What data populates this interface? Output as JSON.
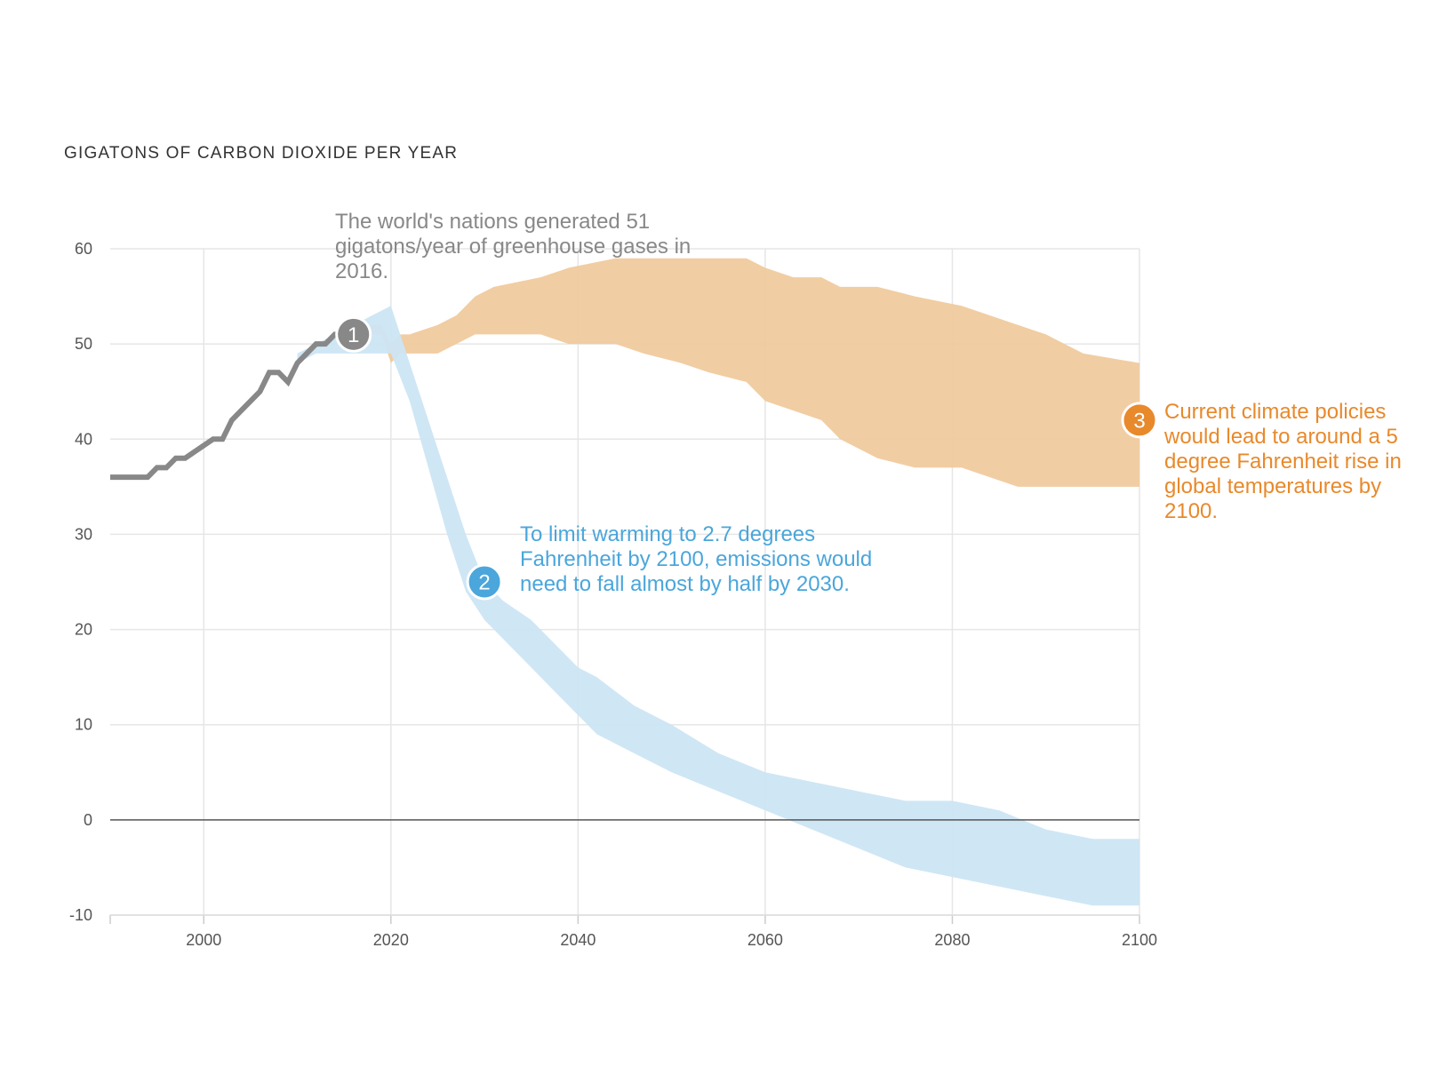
{
  "chart_data": {
    "type": "area",
    "title": "GIGATONS OF CARBON DIOXIDE PER YEAR",
    "xlabel": "",
    "ylabel": "",
    "xlim": [
      1990,
      2100
    ],
    "ylim": [
      -10,
      60
    ],
    "x_ticks": [
      "2000",
      "2020",
      "2040",
      "2060",
      "2080",
      "2100"
    ],
    "y_ticks": [
      "60",
      "50",
      "40",
      "30",
      "20",
      "10",
      "0",
      "-10"
    ],
    "grid": true,
    "series": [
      {
        "name": "Historical emissions",
        "kind": "line",
        "color": "#888888",
        "x": [
          1990,
          1994,
          1995,
          1996,
          1997,
          1998,
          2001,
          2002,
          2003,
          2004,
          2006,
          2007,
          2008,
          2009,
          2010,
          2011,
          2012,
          2013,
          2014,
          2016
        ],
        "y": [
          36,
          36,
          37,
          37,
          38,
          38,
          40,
          40,
          42,
          43,
          45,
          47,
          47,
          46,
          48,
          49,
          50,
          50,
          51,
          51
        ]
      },
      {
        "name": "Current climate policies",
        "kind": "band",
        "color": "#f0ca9e",
        "x": [
          2017,
          2019,
          2020,
          2021,
          2022,
          2025,
          2027,
          2029,
          2031,
          2036,
          2039,
          2044,
          2047,
          2051,
          2054,
          2058,
          2060,
          2063,
          2066,
          2068,
          2072,
          2076,
          2081,
          2084,
          2087,
          2090,
          2094,
          2100
        ],
        "upper": [
          52,
          52,
          50,
          51,
          51,
          52,
          53,
          55,
          56,
          57,
          58,
          59,
          59,
          59,
          59,
          59,
          58,
          57,
          57,
          56,
          56,
          55,
          54,
          53,
          52,
          51,
          49,
          48
        ],
        "lower": [
          51,
          51,
          48,
          49,
          49,
          49,
          50,
          51,
          51,
          51,
          50,
          50,
          49,
          48,
          47,
          46,
          44,
          43,
          42,
          40,
          38,
          37,
          37,
          36,
          35,
          35,
          35,
          35
        ]
      },
      {
        "name": "Limit warming to 2.7°F",
        "kind": "band",
        "color": "#cce5f4",
        "x": [
          2010,
          2012,
          2014,
          2016,
          2018,
          2020,
          2022,
          2024,
          2026,
          2028,
          2030,
          2032,
          2035,
          2038,
          2040,
          2042,
          2046,
          2050,
          2055,
          2060,
          2065,
          2070,
          2075,
          2080,
          2085,
          2090,
          2095,
          2100
        ],
        "upper": [
          49,
          50,
          51,
          52,
          53,
          54,
          48,
          42,
          36,
          30,
          25,
          23,
          21,
          18,
          16,
          15,
          12,
          10,
          7,
          5,
          4,
          3,
          2,
          2,
          1,
          -1,
          -2,
          -2
        ],
        "lower": [
          48,
          49,
          49,
          49,
          49,
          49,
          44,
          37,
          30,
          24,
          21,
          19,
          16,
          13,
          11,
          9,
          7,
          5,
          3,
          1,
          -1,
          -3,
          -5,
          -6,
          -7,
          -8,
          -9,
          -9
        ]
      }
    ],
    "annotations": [
      {
        "id": "1",
        "x": 2016,
        "y": 51,
        "color": "#888888",
        "text": "The world's nations generated 51 gigatons/year of greenhouse gases in 2016."
      },
      {
        "id": "2",
        "x": 2030,
        "y": 25,
        "color": "#4aa6db",
        "text": "To limit warming to 2.7 degrees Fahrenheit by 2100, emissions would need to fall almost by half by 2030."
      },
      {
        "id": "3",
        "x": 2100,
        "y": 42,
        "color": "#e8892b",
        "text": "Current climate policies would lead to around a 5 degree Fahrenheit rise in global temperatures by 2100."
      }
    ]
  }
}
